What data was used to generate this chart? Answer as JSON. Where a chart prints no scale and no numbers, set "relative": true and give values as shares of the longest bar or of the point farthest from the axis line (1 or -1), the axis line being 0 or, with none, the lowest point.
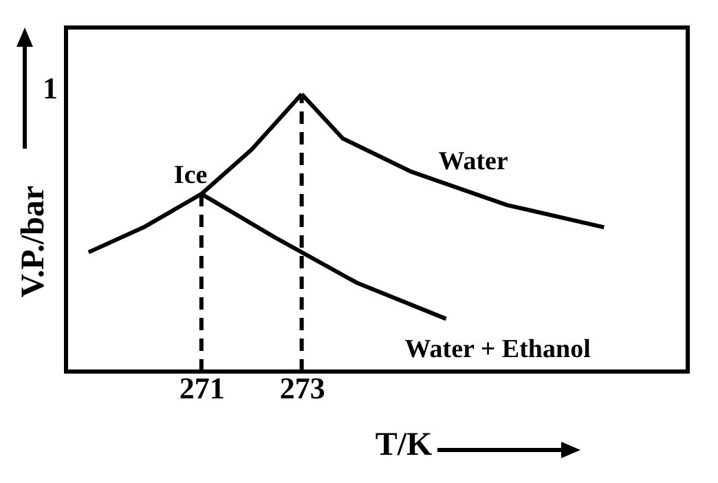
{
  "chart_data": {
    "type": "line",
    "relative": true,
    "xlabel": "T/K",
    "ylabel": "V.P./bar",
    "xlim": [
      268.3,
      280.7
    ],
    "xticks": [
      271,
      273
    ],
    "line_style": "solid",
    "series": [
      {
        "name": "Ice",
        "color": "#000000",
        "x": [
          268.75,
          269.85,
          271,
          272,
          273
        ],
        "values": [
          0.43,
          0.52,
          0.64,
          0.8,
          1
        ]
      },
      {
        "name": "Water",
        "color": "#000000",
        "x": [
          273,
          273.82,
          275.19,
          277.1,
          279.03
        ],
        "values": [
          1,
          0.84,
          0.72,
          0.6,
          0.52
        ]
      },
      {
        "name": "Water + Ethanol",
        "color": "#000000",
        "x": [
          271,
          272.45,
          274.1,
          275.88
        ],
        "values": [
          0.64,
          0.485,
          0.32,
          0.19
        ]
      }
    ],
    "ref_lines": [
      {
        "axis": "x",
        "value": 271,
        "line_style": "dashed"
      },
      {
        "axis": "x",
        "value": 273,
        "line_style": "dashed"
      }
    ],
    "annotations": [
      "1"
    ]
  }
}
